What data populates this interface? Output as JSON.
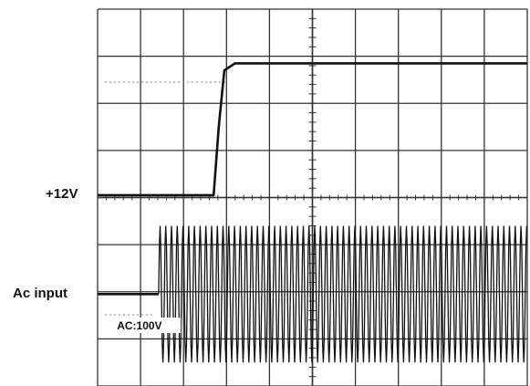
{
  "channels": {
    "ch1_label": "+12V",
    "ch2_label": "Ac input",
    "ch2_setting": "AC:100V"
  },
  "colors": {
    "grid": "#333333",
    "trace": "#111111",
    "reference_dotted": "#999999",
    "background": "#ffffff"
  },
  "chart_data": {
    "type": "line",
    "title": "",
    "xlabel": "",
    "ylabel": "",
    "grid": true,
    "divisions": {
      "x": 10,
      "y": 8
    },
    "xlim": [
      0,
      10
    ],
    "ylim": [
      0,
      8
    ],
    "series": [
      {
        "name": "+12V",
        "kind": "step",
        "x": [
          0,
          2.7,
          2.82,
          2.95,
          3.2,
          10
        ],
        "y": [
          4.05,
          4.05,
          5.5,
          6.7,
          6.85,
          6.85
        ]
      },
      {
        "name": "Ac input",
        "kind": "ac",
        "x_start": 1.42,
        "baseline": 1.95,
        "amplitude": 1.45,
        "cycles_per_div": 7.5,
        "x": [
          0,
          1.42,
          10
        ],
        "y": [
          1.95,
          1.95,
          1.95
        ]
      }
    ],
    "annotations": [
      {
        "text": "AC:100V",
        "x": 0.45,
        "y": 1.2
      }
    ]
  }
}
